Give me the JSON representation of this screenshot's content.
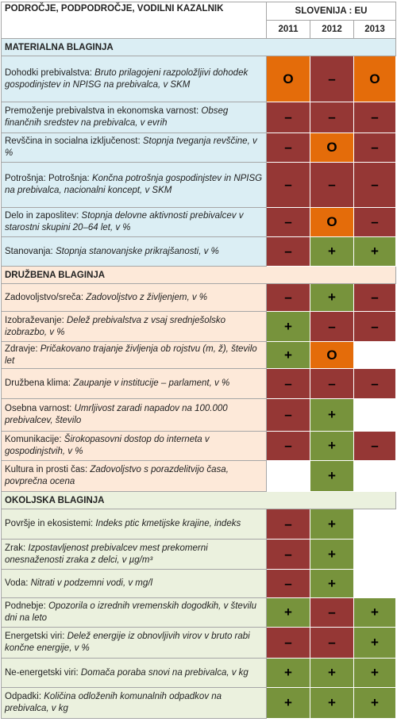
{
  "header": {
    "title": "PODROČJE, PODPODROČJE, VODILNI KAZALNIK",
    "group": "SLOVENIJA : EU",
    "years": [
      "2011",
      "2012",
      "2013"
    ]
  },
  "sections": [
    {
      "title": "MATERIALNA BLAGINJA",
      "color": "#dbeef4",
      "rows": [
        {
          "label": "Dohodki prebivalstva:",
          "indicator": "Bruto prilagojeni razpoložljivi dohodek gospodinjstev in NPISG na prebivalca, v SKM",
          "cells": [
            {
              "text": "O",
              "color": "#e46c0a"
            },
            {
              "text": "–",
              "color": "#953735"
            },
            {
              "text": "O",
              "color": "#e46c0a"
            }
          ]
        },
        {
          "label": "Premoženje prebivalstva in ekonomska varnost:",
          "indicator": "Obseg finančnih sredstev na prebivalca, v evrih",
          "cells": [
            {
              "text": "–",
              "color": "#953735"
            },
            {
              "text": "–",
              "color": "#953735"
            },
            {
              "text": "–",
              "color": "#953735"
            }
          ]
        },
        {
          "label": "Revščina in socialna izključenost:",
          "indicator": "Stopnja tveganja revščine, v %",
          "cells": [
            {
              "text": "–",
              "color": "#953735"
            },
            {
              "text": "O",
              "color": "#e46c0a"
            },
            {
              "text": "–",
              "color": "#953735"
            }
          ]
        },
        {
          "label": "Potrošnja: Potrošnja:",
          "indicator": "Končna potrošnja gospodinjstev in NPISG na prebivalca, nacionalni koncept, v SKM",
          "cells": [
            {
              "text": "–",
              "color": "#953735"
            },
            {
              "text": "–",
              "color": "#953735"
            },
            {
              "text": "–",
              "color": "#953735"
            }
          ]
        },
        {
          "label": "Delo in zaposlitev:",
          "indicator": "Stopnja delovne aktivnosti prebivalcev v starostni skupini 20–64 let, v %",
          "cells": [
            {
              "text": "–",
              "color": "#953735"
            },
            {
              "text": "O",
              "color": "#e46c0a"
            },
            {
              "text": "–",
              "color": "#953735"
            }
          ]
        },
        {
          "label": "Stanovanja:",
          "indicator": "Stopnja stanovanjske prikrajšanosti, v %",
          "cells": [
            {
              "text": "–",
              "color": "#953735"
            },
            {
              "text": "+",
              "color": "#77933c"
            },
            {
              "text": "+",
              "color": "#77933c"
            }
          ]
        }
      ]
    },
    {
      "title": "DRUŽBENA BLAGINJA",
      "color": "#fde9d9",
      "rows": [
        {
          "label": "Zadovoljstvo/sreča:",
          "indicator": "Zadovoljstvo z življenjem, v %",
          "cells": [
            {
              "text": "–",
              "color": "#953735"
            },
            {
              "text": "+",
              "color": "#77933c"
            },
            {
              "text": "–",
              "color": "#953735"
            }
          ]
        },
        {
          "label": "Izobraževanje:",
          "indicator": "Delež prebivalstva z vsaj srednješolsko izobrazbo, v %",
          "cells": [
            {
              "text": "+",
              "color": "#77933c"
            },
            {
              "text": "–",
              "color": "#953735"
            },
            {
              "text": "–",
              "color": "#953735"
            }
          ]
        },
        {
          "label": "Zdravje:",
          "indicator": "Pričakovano trajanje življenja ob rojstvu (m, ž), število let",
          "cells": [
            {
              "text": "+",
              "color": "#77933c"
            },
            {
              "text": "O",
              "color": "#e46c0a"
            },
            {
              "color": "#ffffff"
            }
          ]
        },
        {
          "label": "Družbena klima:",
          "indicator": "Zaupanje v institucije – parlament, v %",
          "cells": [
            {
              "text": "–",
              "color": "#953735"
            },
            {
              "text": "–",
              "color": "#953735"
            },
            {
              "text": "–",
              "color": "#953735"
            }
          ]
        },
        {
          "label": "Osebna varnost:",
          "indicator": "Umrljivost zaradi napadov na 100.000 prebivalcev, število",
          "cells": [
            {
              "text": "–",
              "color": "#953735"
            },
            {
              "text": "+",
              "color": "#77933c"
            },
            {
              "color": "#ffffff"
            }
          ]
        },
        {
          "label": "Komunikacije:",
          "indicator": "Širokopasovni dostop do interneta v gospodinjstvih, v %",
          "cells": [
            {
              "text": "–",
              "color": "#953735"
            },
            {
              "text": "+",
              "color": "#77933c"
            },
            {
              "text": "–",
              "color": "#953735"
            }
          ]
        },
        {
          "label": "Kultura in prosti čas:",
          "indicator": "Zadovoljstvo s porazdelitvijo časa, povprečna ocena",
          "cells": [
            {
              "color": "#ffffff"
            },
            {
              "text": "+",
              "color": "#77933c"
            },
            {
              "color": "#ffffff"
            }
          ]
        }
      ]
    },
    {
      "title": "OKOLJSKA BLAGINJA",
      "color": "#ebf1de",
      "rows": [
        {
          "label": "Površje in ekosistemi:",
          "indicator": "Indeks ptic kmetijske krajine, indeks",
          "cells": [
            {
              "text": "–",
              "color": "#953735"
            },
            {
              "text": "+",
              "color": "#77933c"
            },
            {
              "color": "#ffffff"
            }
          ]
        },
        {
          "label": "Zrak:",
          "indicator": "Izpostavljenost prebivalcev mest prekomerni onesnaženosti zraka z delci, v µg/m³",
          "cells": [
            {
              "text": "–",
              "color": "#953735"
            },
            {
              "text": "+",
              "color": "#77933c"
            },
            {
              "color": "#ffffff"
            }
          ]
        },
        {
          "label": "Voda:",
          "indicator": "Nitrati v podzemni vodi, v mg/l",
          "cells": [
            {
              "text": "–",
              "color": "#953735"
            },
            {
              "text": "+",
              "color": "#77933c"
            },
            {
              "color": "#ffffff"
            }
          ]
        },
        {
          "label": "Podnebje:",
          "indicator": "Opozorila o izrednih vremenskih dogodkih, v številu dni na leto",
          "cells": [
            {
              "text": "+",
              "color": "#77933c"
            },
            {
              "text": "–",
              "color": "#953735"
            },
            {
              "text": "+",
              "color": "#77933c"
            }
          ]
        },
        {
          "label": "Energetski viri:",
          "indicator": "Delež energije iz obnovljivih virov v bruto rabi končne energije, v %",
          "cells": [
            {
              "text": "–",
              "color": "#953735"
            },
            {
              "text": "–",
              "color": "#953735"
            },
            {
              "text": "+",
              "color": "#77933c"
            }
          ]
        },
        {
          "label": "Ne-energetski viri:",
          "indicator": "Domača poraba snovi na prebivalca, v kg",
          "cells": [
            {
              "text": "+",
              "color": "#77933c"
            },
            {
              "text": "+",
              "color": "#77933c"
            },
            {
              "text": "+",
              "color": "#77933c"
            }
          ]
        },
        {
          "label": "Odpadki:",
          "indicator": "Količina odloženih komunalnih odpadkov na prebivalca, v kg",
          "cells": [
            {
              "text": "+",
              "color": "#77933c"
            },
            {
              "text": "+",
              "color": "#77933c"
            },
            {
              "text": "+",
              "color": "#77933c"
            }
          ]
        }
      ]
    }
  ]
}
